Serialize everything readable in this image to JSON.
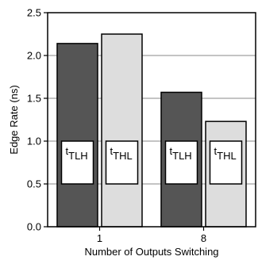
{
  "chart_data": {
    "type": "bar",
    "title": "",
    "xlabel": "Number of Outputs Switching",
    "ylabel": "Edge Rate (ns)",
    "categories": [
      "1",
      "8"
    ],
    "series": [
      {
        "name": "tTLH",
        "values": [
          2.14,
          1.57
        ]
      },
      {
        "name": "tTHL",
        "values": [
          2.25,
          1.23
        ]
      }
    ],
    "ylim": [
      0,
      2.5
    ],
    "yticks": [
      "0.0",
      "0.5",
      "1.0",
      "1.5",
      "2.0",
      "2.5"
    ],
    "grid": "horizontal",
    "series_colors": [
      "#555555",
      "#dddddd"
    ],
    "label_boxes": [
      {
        "main": "t",
        "sub": "TLH"
      },
      {
        "main": "t",
        "sub": "THL"
      },
      {
        "main": "t",
        "sub": "TLH"
      },
      {
        "main": "t",
        "sub": "THL"
      }
    ]
  }
}
